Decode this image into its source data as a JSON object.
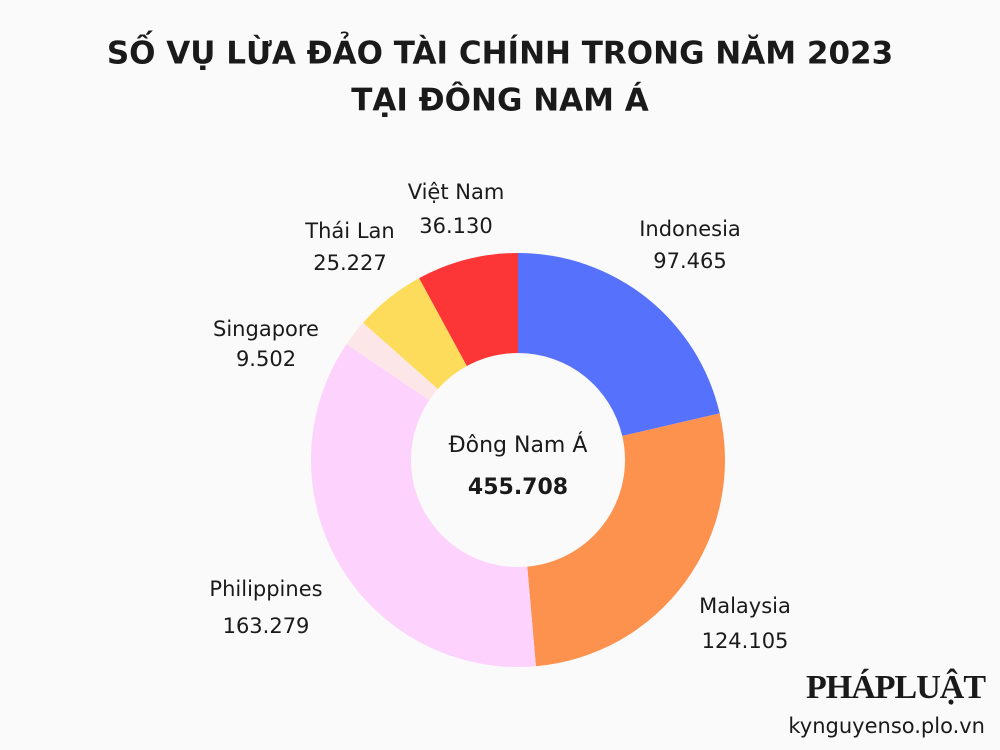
{
  "chart_data": {
    "type": "donut",
    "title": [
      "SỐ VỤ LỪA ĐẢO TÀI CHÍNH TRONG NĂM 2023",
      "TẠI ĐÔNG NAM Á"
    ],
    "categories": [
      "Indonesia",
      "Malaysia",
      "Philippines",
      "Singapore",
      "Thái Lan",
      "Việt Nam"
    ],
    "values": [
      97465,
      124105,
      163279,
      9502,
      25227,
      36130
    ],
    "value_labels": [
      "97.465",
      "124.105",
      "163.279",
      "9.502",
      "25.227",
      "36.130"
    ],
    "colors": [
      "#5671fb",
      "#fd914e",
      "#fdd3fd",
      "#fde6e8",
      "#fddc5b",
      "#fc3537"
    ],
    "center_label": "Đông Nam Á",
    "total": {
      "value": 455708,
      "label": "455.708"
    }
  },
  "footer": {
    "logo": "PHÁPLUẬT",
    "source": "kynguyenso.plo.vn"
  }
}
